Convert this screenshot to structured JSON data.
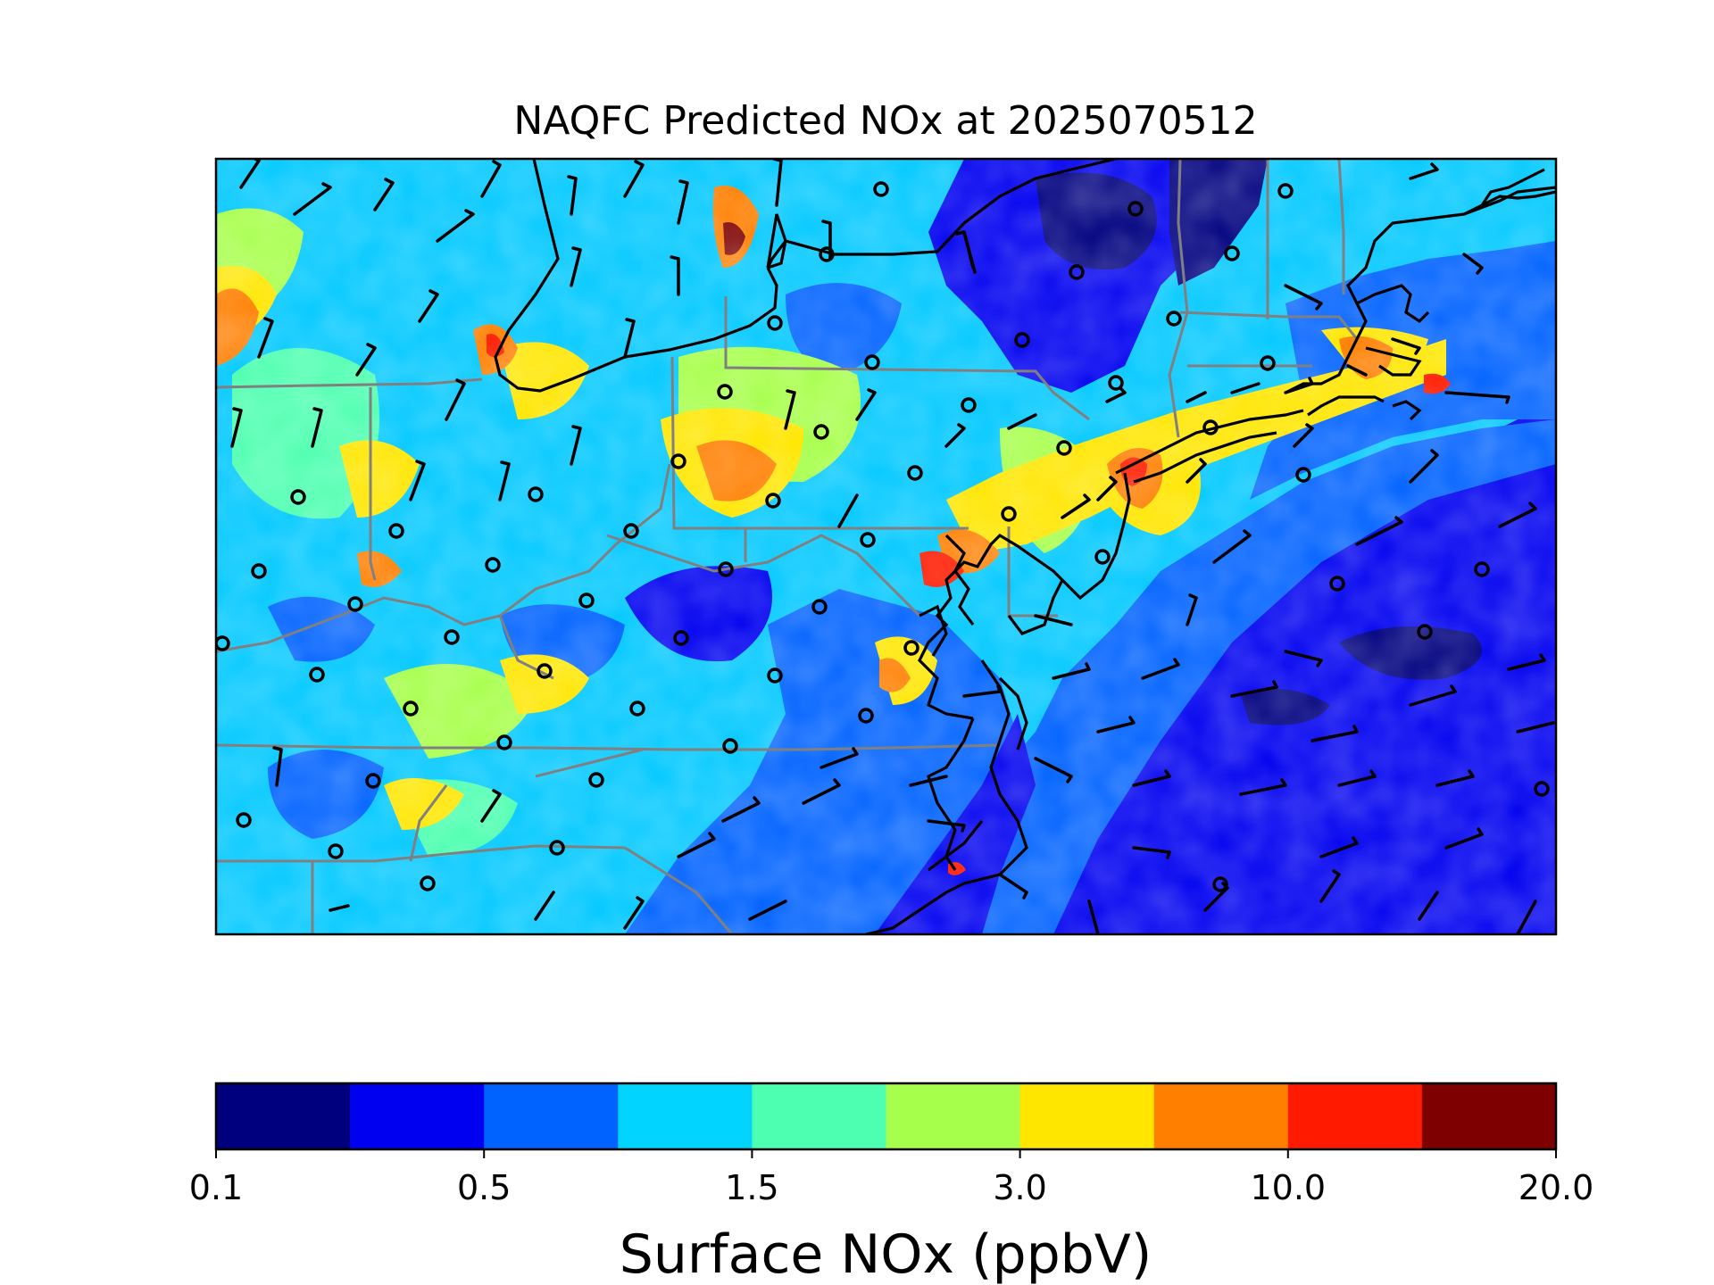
{
  "title": "NAQFC Predicted NOx at 2025070512",
  "colorbar": {
    "label": "Surface NOx (ppbV)",
    "colors": [
      "#00007f",
      "#0000f0",
      "#0062ff",
      "#00d4ff",
      "#4dffb0",
      "#a6ff4a",
      "#ffe600",
      "#ff7f00",
      "#ff1a00",
      "#7f0000"
    ],
    "ticks": [
      "0.1",
      "0.5",
      "1.5",
      "3.0",
      "10.0",
      "20.0"
    ]
  },
  "map": {
    "ocean_color": "#0a1ef0",
    "state_border_color": "#808080",
    "coast_color": "#000000"
  }
}
